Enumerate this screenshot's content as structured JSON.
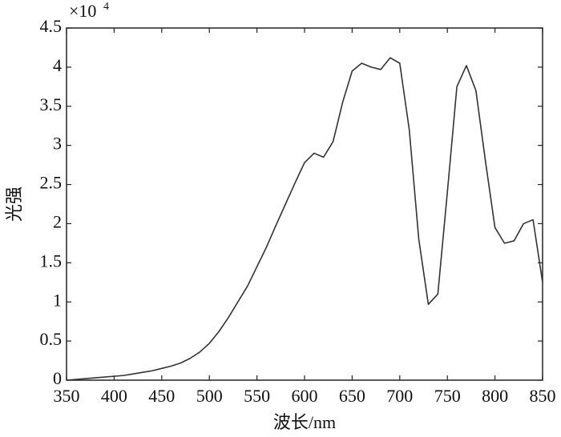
{
  "chart_data": {
    "type": "line",
    "x_label": "波长/nm",
    "y_label": "光强",
    "y_scale_label": {
      "base": "×10",
      "exponent": "4"
    },
    "xlim": [
      350,
      850
    ],
    "xticks": [
      350,
      400,
      450,
      500,
      550,
      600,
      650,
      700,
      750,
      800,
      850
    ],
    "ylim": [
      0,
      4.5
    ],
    "yticks": [
      0,
      0.5,
      1,
      1.5,
      2,
      2.5,
      3,
      3.5,
      4,
      4.5
    ],
    "x": [
      350,
      360,
      370,
      380,
      390,
      400,
      410,
      420,
      430,
      440,
      450,
      460,
      470,
      480,
      490,
      500,
      510,
      520,
      530,
      540,
      550,
      560,
      570,
      580,
      590,
      600,
      610,
      620,
      630,
      640,
      650,
      660,
      670,
      680,
      690,
      700,
      710,
      720,
      730,
      740,
      750,
      760,
      770,
      780,
      790,
      800,
      810,
      820,
      830,
      840,
      850
    ],
    "series": [
      {
        "color": "#333333",
        "values": [
          0,
          0.01,
          0.02,
          0.03,
          0.04,
          0.05,
          0.06,
          0.08,
          0.1,
          0.12,
          0.15,
          0.18,
          0.22,
          0.28,
          0.36,
          0.47,
          0.62,
          0.8,
          1.0,
          1.2,
          1.45,
          1.7,
          1.98,
          2.25,
          2.52,
          2.78,
          2.9,
          2.85,
          3.05,
          3.55,
          3.95,
          4.05,
          4.0,
          3.97,
          4.12,
          4.05,
          3.2,
          1.8,
          0.97,
          1.1,
          2.4,
          3.75,
          4.02,
          3.7,
          2.8,
          1.95,
          1.75,
          1.78,
          2.0,
          2.05,
          1.25
        ]
      }
    ]
  }
}
